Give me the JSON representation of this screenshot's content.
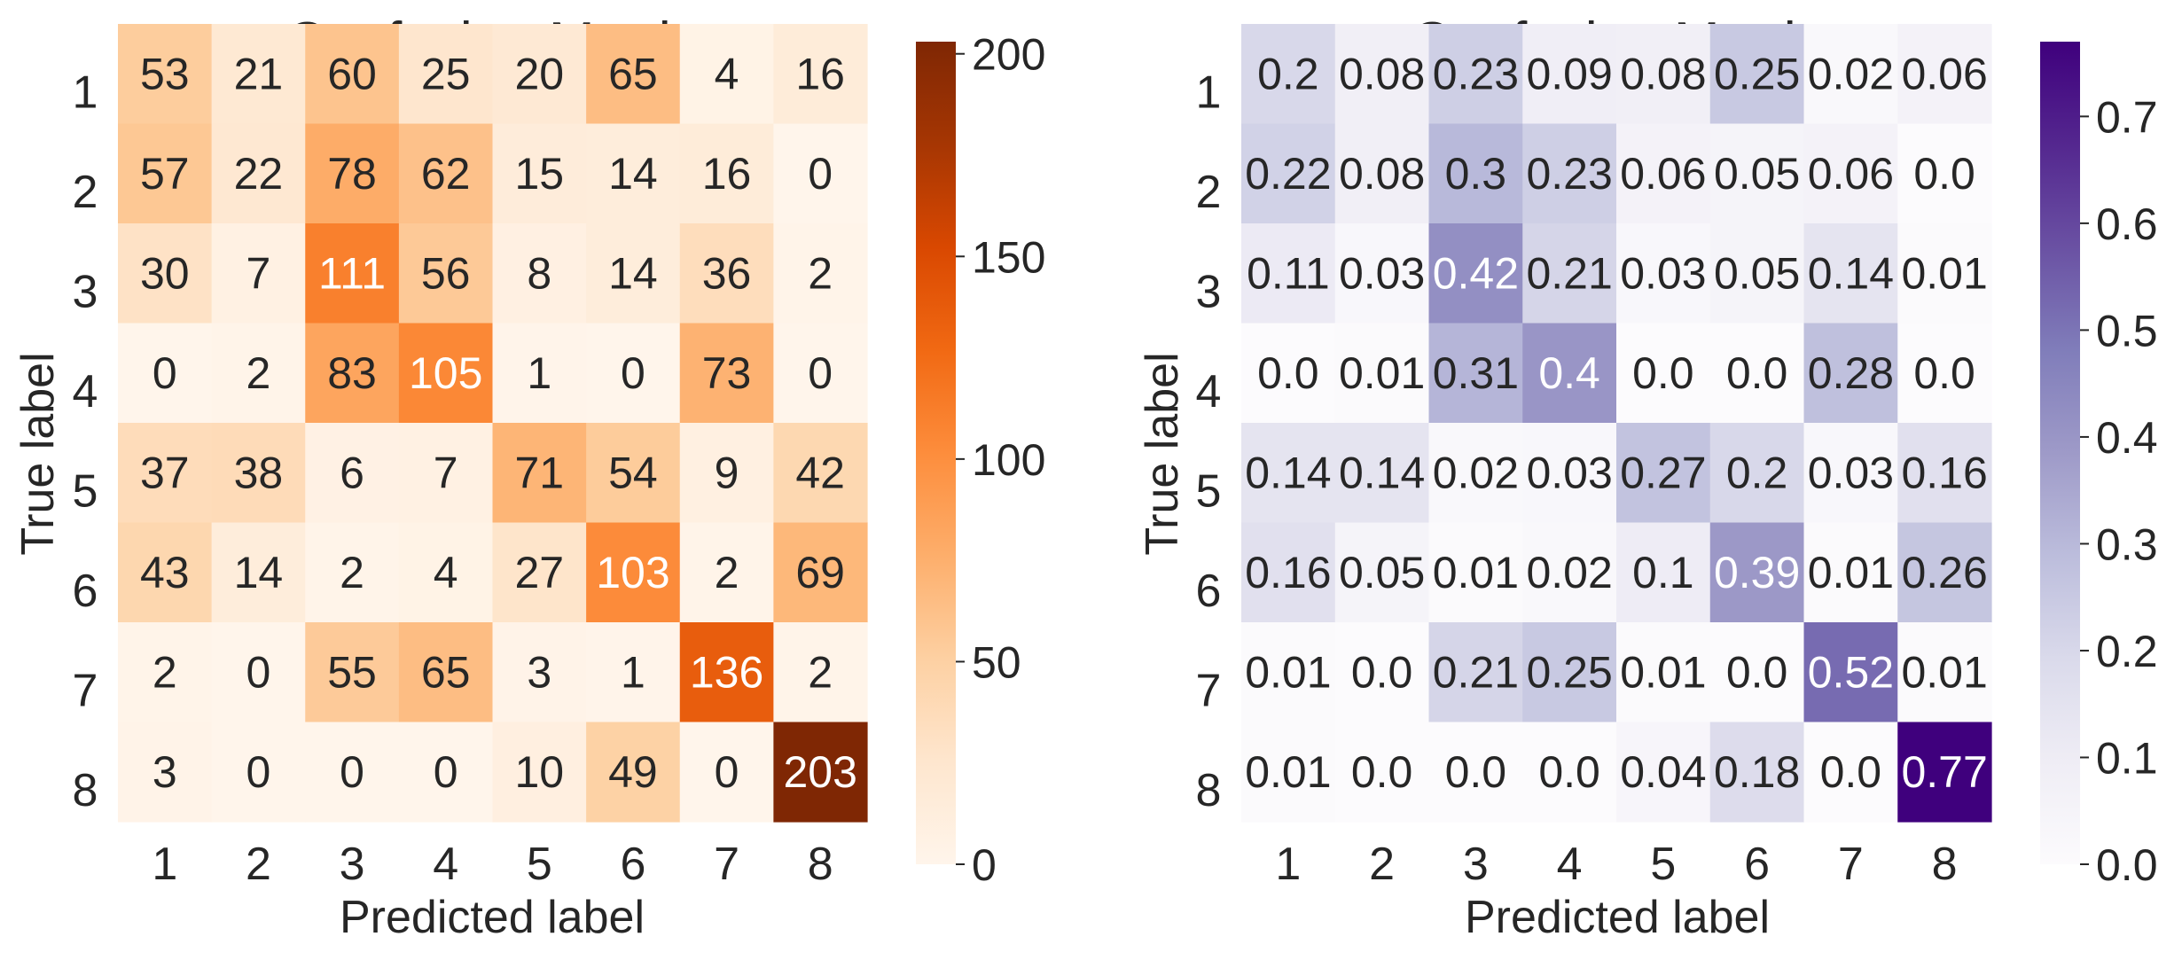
{
  "chart_data": [
    {
      "type": "heatmap",
      "title": "Confusion Matrix",
      "xlabel": "Predicted label",
      "ylabel": "True label",
      "x_tick_labels": [
        "1",
        "2",
        "3",
        "4",
        "5",
        "6",
        "7",
        "8"
      ],
      "y_tick_labels": [
        "1",
        "2",
        "3",
        "4",
        "5",
        "6",
        "7",
        "8"
      ],
      "colormap": "Oranges",
      "color_low": "#fff5eb",
      "color_high": "#7f2704",
      "vmin": 0,
      "vmax": 203,
      "colorbar_ticks": [
        "0",
        "50",
        "100",
        "150",
        "200"
      ],
      "colorbar_tick_values": [
        0,
        50,
        100,
        150,
        200
      ],
      "values": [
        [
          53,
          21,
          60,
          25,
          20,
          65,
          4,
          16
        ],
        [
          57,
          22,
          78,
          62,
          15,
          14,
          16,
          0
        ],
        [
          30,
          7,
          111,
          56,
          8,
          14,
          36,
          2
        ],
        [
          0,
          2,
          83,
          105,
          1,
          0,
          73,
          0
        ],
        [
          37,
          38,
          6,
          7,
          71,
          54,
          9,
          42
        ],
        [
          43,
          14,
          2,
          4,
          27,
          103,
          2,
          69
        ],
        [
          2,
          0,
          55,
          65,
          3,
          1,
          136,
          2
        ],
        [
          3,
          0,
          0,
          0,
          10,
          49,
          0,
          203
        ]
      ],
      "cell_labels": [
        [
          "53",
          "21",
          "60",
          "25",
          "20",
          "65",
          "4",
          "16"
        ],
        [
          "57",
          "22",
          "78",
          "62",
          "15",
          "14",
          "16",
          "0"
        ],
        [
          "30",
          "7",
          "111",
          "56",
          "8",
          "14",
          "36",
          "2"
        ],
        [
          "0",
          "2",
          "83",
          "105",
          "1",
          "0",
          "73",
          "0"
        ],
        [
          "37",
          "38",
          "6",
          "7",
          "71",
          "54",
          "9",
          "42"
        ],
        [
          "43",
          "14",
          "2",
          "4",
          "27",
          "103",
          "2",
          "69"
        ],
        [
          "2",
          "0",
          "55",
          "65",
          "3",
          "1",
          "136",
          "2"
        ],
        [
          "3",
          "0",
          "0",
          "0",
          "10",
          "49",
          "0",
          "203"
        ]
      ]
    },
    {
      "type": "heatmap",
      "title": "Confusion Matrix",
      "xlabel": "Predicted label",
      "ylabel": "True label",
      "x_tick_labels": [
        "1",
        "2",
        "3",
        "4",
        "5",
        "6",
        "7",
        "8"
      ],
      "y_tick_labels": [
        "1",
        "2",
        "3",
        "4",
        "5",
        "6",
        "7",
        "8"
      ],
      "colormap": "Purples",
      "color_low": "#fcfbfd",
      "color_high": "#3f007d",
      "vmin": 0,
      "vmax": 0.77,
      "colorbar_ticks": [
        "0.0",
        "0.1",
        "0.2",
        "0.3",
        "0.4",
        "0.5",
        "0.6",
        "0.7"
      ],
      "colorbar_tick_values": [
        0.0,
        0.1,
        0.2,
        0.3,
        0.4,
        0.5,
        0.6,
        0.7
      ],
      "values": [
        [
          0.2,
          0.08,
          0.23,
          0.09,
          0.08,
          0.25,
          0.02,
          0.06
        ],
        [
          0.22,
          0.08,
          0.3,
          0.23,
          0.06,
          0.05,
          0.06,
          0.0
        ],
        [
          0.11,
          0.03,
          0.42,
          0.21,
          0.03,
          0.05,
          0.14,
          0.01
        ],
        [
          0.0,
          0.01,
          0.31,
          0.4,
          0.0,
          0.0,
          0.28,
          0.0
        ],
        [
          0.14,
          0.14,
          0.02,
          0.03,
          0.27,
          0.2,
          0.03,
          0.16
        ],
        [
          0.16,
          0.05,
          0.01,
          0.02,
          0.1,
          0.39,
          0.01,
          0.26
        ],
        [
          0.01,
          0.0,
          0.21,
          0.25,
          0.01,
          0.0,
          0.52,
          0.01
        ],
        [
          0.01,
          0.0,
          0.0,
          0.0,
          0.04,
          0.18,
          0.0,
          0.77
        ]
      ],
      "cell_labels": [
        [
          "0.2",
          "0.08",
          "0.23",
          "0.09",
          "0.08",
          "0.25",
          "0.02",
          "0.06"
        ],
        [
          "0.22",
          "0.08",
          "0.3",
          "0.23",
          "0.06",
          "0.05",
          "0.06",
          "0.0"
        ],
        [
          "0.11",
          "0.03",
          "0.42",
          "0.21",
          "0.03",
          "0.05",
          "0.14",
          "0.01"
        ],
        [
          "0.0",
          "0.01",
          "0.31",
          "0.4",
          "0.0",
          "0.0",
          "0.28",
          "0.0"
        ],
        [
          "0.14",
          "0.14",
          "0.02",
          "0.03",
          "0.27",
          "0.2",
          "0.03",
          "0.16"
        ],
        [
          "0.16",
          "0.05",
          "0.01",
          "0.02",
          "0.1",
          "0.39",
          "0.01",
          "0.26"
        ],
        [
          "0.01",
          "0.0",
          "0.21",
          "0.25",
          "0.01",
          "0.0",
          "0.52",
          "0.01"
        ],
        [
          "0.01",
          "0.0",
          "0.0",
          "0.0",
          "0.04",
          "0.18",
          "0.0",
          "0.77"
        ]
      ]
    }
  ]
}
